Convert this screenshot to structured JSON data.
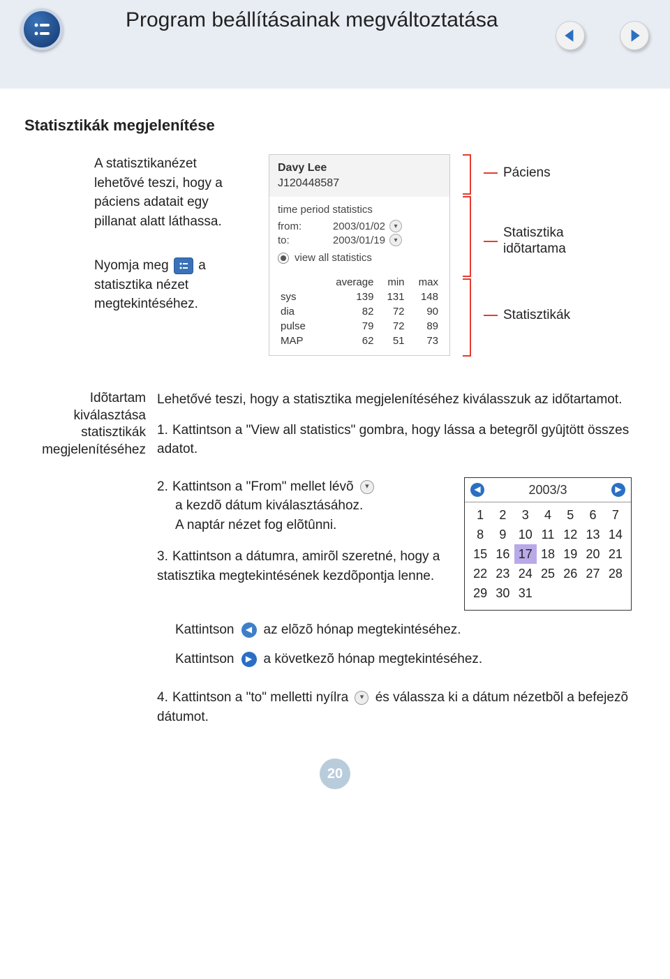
{
  "header": {
    "title": "Program beállításainak megváltoztatása"
  },
  "section_title": "Statisztikák megjelenítése",
  "para1": "A statisztikanézet lehetõvé teszi, hogy a páciens adatait egy pillanat alatt láthassa.",
  "para2_a": "Nyomja meg ",
  "para2_b": " a statisztika nézet megtekintéséhez.",
  "panel": {
    "name": "Davy Lee",
    "id": "J120448587",
    "tps": "time period statistics",
    "from_l": "from:",
    "from_d": "2003/01/02",
    "to_l": "to:",
    "to_d": "2003/01/19",
    "viewall": "view all statistics",
    "cols": {
      "avg": "average",
      "min": "min",
      "max": "max"
    },
    "rows": [
      {
        "n": "sys",
        "a": "139",
        "mi": "131",
        "mx": "148"
      },
      {
        "n": "dia",
        "a": "82",
        "mi": "72",
        "mx": "90"
      },
      {
        "n": "pulse",
        "a": "79",
        "mi": "72",
        "mx": "89"
      },
      {
        "n": "MAP",
        "a": "62",
        "mi": "51",
        "mx": "73"
      }
    ]
  },
  "labels": {
    "p": "Páciens",
    "t": "Statisztika idõtartama",
    "s": "Statisztikák"
  },
  "side": "Idõtartam kiválasztása statisztikák megjelenítéséhez",
  "intro2": "Lehetővé teszi, hogy a statisztika megjelenítéséhez kiválasszuk az időtartamot.",
  "s1": "Kattintson a \"View all statistics\" gombra, hogy lássa a betegrõl gyûjtött összes adatot.",
  "s2a": "Kattintson a \"From\" mellet lévõ",
  "s2b": "a kezdõ dátum kiválasztásához.",
  "s2c": "A naptár nézet fog elõtûnni.",
  "s3": "Kattintson a dátumra, amirõl szeretné, hogy a statisztika megtekintésének kezdõpontja lenne.",
  "k": "Kattintson",
  "kprev": "az elõzõ hónap megtekintéséhez.",
  "knext": "a következõ hónap megtekintéséhez.",
  "s4a": "Kattintson a \"to\" melletti nyílra",
  "s4b": "és válassza ki a dátum nézetbõl a befejezõ dátumot.",
  "cal": {
    "month": "2003/3",
    "days": [
      "1",
      "2",
      "3",
      "4",
      "5",
      "6",
      "7",
      "8",
      "9",
      "10",
      "11",
      "12",
      "13",
      "14",
      "15",
      "16",
      "17",
      "18",
      "19",
      "20",
      "21",
      "22",
      "23",
      "24",
      "25",
      "26",
      "27",
      "28",
      "29",
      "30",
      "31"
    ],
    "selected": "17"
  },
  "pagenum": "20"
}
